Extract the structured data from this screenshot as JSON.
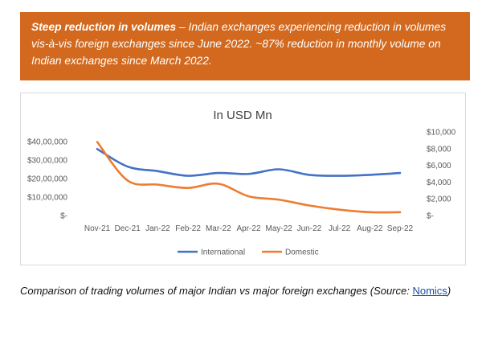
{
  "banner": {
    "bold_text": "Steep reduction in volumes",
    "rest_text": " – Indian exchanges experiencing reduction in volumes vis-à-vis foreign exchanges since June 2022. ~87% reduction in monthly volume on Indian exchanges since March 2022."
  },
  "caption": {
    "text": "Comparison of trading volumes of major Indian vs major foreign exchanges (Source: ",
    "link": "Nomics",
    "close": ")"
  },
  "colors": {
    "banner": "#d2691e",
    "international": "#4472c4",
    "domestic": "#ed7d31"
  },
  "chart_data": {
    "type": "line",
    "title": "In USD Mn",
    "categories": [
      "Nov-21",
      "Dec-21",
      "Jan-22",
      "Feb-22",
      "Mar-22",
      "Apr-22",
      "May-22",
      "Jun-22",
      "Jul-22",
      "Aug-22",
      "Sep-22"
    ],
    "y_left": {
      "ticks": [
        "$40,00,000",
        "$30,00,000",
        "$20,00,000",
        "$10,00,000",
        "$-"
      ],
      "ylim": [
        0,
        4000000
      ]
    },
    "y_right": {
      "ticks": [
        "$10,000",
        "$8,000",
        "$6,000",
        "$4,000",
        "$2,000",
        "$-"
      ],
      "ylim": [
        0,
        10000
      ]
    },
    "series": [
      {
        "name": "International",
        "axis": "left",
        "values": [
          3600000,
          2650000,
          2400000,
          2150000,
          2300000,
          2250000,
          2500000,
          2200000,
          2150000,
          2200000,
          2300000
        ]
      },
      {
        "name": "Domestic",
        "axis": "right",
        "values": [
          8800,
          4200,
          3700,
          3300,
          3800,
          2300,
          1900,
          1200,
          700,
          400,
          400
        ]
      }
    ],
    "legend_position": "bottom",
    "grid": false
  }
}
